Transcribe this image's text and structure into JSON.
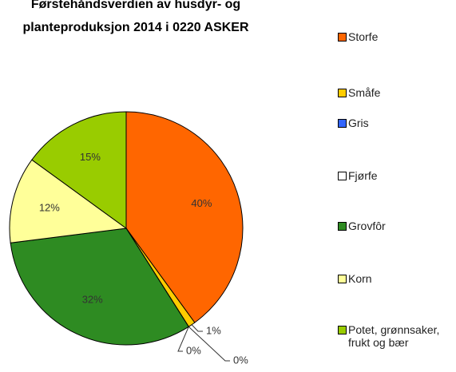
{
  "chart_data": {
    "type": "pie",
    "title": [
      "Førstehåndsverdien av husdyr- og",
      "planteproduksjon 2014 i 0220 ASKER"
    ],
    "categories": [
      "Storfe",
      "Småfe",
      "Gris",
      "Fjørfe",
      "Grovfôr",
      "Korn",
      "Potet, grønnsaker, frukt og bær"
    ],
    "values": [
      40,
      1,
      0,
      0,
      32,
      12,
      15
    ],
    "value_labels": [
      "40%",
      "1%",
      "0%",
      "0%",
      "32%",
      "12%",
      "15%"
    ],
    "colors": [
      "#ff6600",
      "#ffcc00",
      "#3366ff",
      "#ffffff",
      "#2e8b22",
      "#ffff99",
      "#99cc00"
    ],
    "legend": "right"
  }
}
